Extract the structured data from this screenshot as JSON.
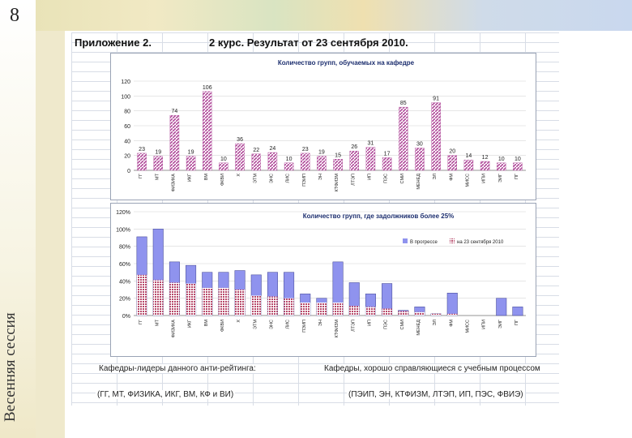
{
  "slide": {
    "number": "8",
    "vertical_title": "Весенняя сессия",
    "heading_left": "Приложение 2.",
    "heading_right": "2 курс.  Результат от 23 сентября 2010."
  },
  "colors": {
    "chart1_bar": "#b04a9a",
    "chart2_bar": "#8f93ee",
    "chart2_overlay": "#b7496a"
  },
  "chart_data": [
    {
      "type": "bar",
      "title": "Количество групп, обучаемых на кафедре",
      "categories": [
        "ГГ",
        "МТ",
        "ФИЗИКА",
        "ИКГ",
        "ВМ",
        "ФКВИ",
        "Х",
        "ЭТМ",
        "ЭНС",
        "ЛИС",
        "ПЭИП",
        "ЭН",
        "КТФИЗМ",
        "ЛТЭП",
        "ИП",
        "ПЭС",
        "СМИ",
        "МЕНЕД",
        "ЭЛ",
        "ФМ",
        "МИСС",
        "ИПИ",
        "ЭИГ",
        "ПГ"
      ],
      "values": [
        23,
        19,
        74,
        19,
        106,
        10,
        36,
        22,
        24,
        10,
        23,
        19,
        15,
        26,
        31,
        17,
        85,
        30,
        91,
        20,
        14,
        12,
        10,
        10
      ],
      "value_labels": [
        "23",
        "19",
        "74",
        "19",
        "106",
        "10",
        "36",
        "22",
        "24",
        "10",
        "23",
        "19",
        "15",
        "26",
        "31",
        "17",
        "85",
        "30",
        "91",
        "20",
        "14",
        "12",
        "10",
        "10"
      ],
      "ylim": [
        0,
        120
      ],
      "yticks": [
        "0",
        "20",
        "40",
        "60",
        "80",
        "100",
        "120"
      ],
      "xlabel": "",
      "ylabel": ""
    },
    {
      "type": "bar",
      "title": "Количество групп, где задолжников более 25%",
      "categories": [
        "ГГ",
        "МТ",
        "ФИЗИКА",
        "ИКГ",
        "ВМ",
        "ФКВИ",
        "Х",
        "ЭТМ",
        "ЭНС",
        "ЛИС",
        "ПЭИП",
        "ЭН",
        "КТФИЗМ",
        "ЛТЭП",
        "ИП",
        "ПЭС",
        "СМИ",
        "МЕНЕД",
        "ЭЛ",
        "ФМ",
        "МИСС",
        "ИПИ",
        "ЭИГ",
        "ПГ"
      ],
      "series": [
        {
          "name": "В прогрессе",
          "values": [
            0.91,
            1.0,
            0.62,
            0.58,
            0.5,
            0.5,
            0.52,
            0.47,
            0.5,
            0.5,
            0.25,
            0.2,
            0.62,
            0.38,
            0.25,
            0.37,
            0.06,
            0.1,
            0.02,
            0.26,
            0.0,
            0.0,
            0.2,
            0.1
          ]
        },
        {
          "name": "на 23 сентября 2010",
          "values": [
            0.47,
            0.41,
            0.38,
            0.37,
            0.32,
            0.32,
            0.3,
            0.23,
            0.22,
            0.2,
            0.15,
            0.15,
            0.15,
            0.11,
            0.1,
            0.08,
            0.05,
            0.04,
            0.02,
            0.02,
            0.0,
            0.0,
            0.0,
            0.0
          ]
        }
      ],
      "ylim": [
        0,
        1.2
      ],
      "yticks": [
        "0%",
        "20%",
        "40%",
        "60%",
        "80%",
        "100%",
        "120%"
      ]
    }
  ],
  "notes": {
    "leaders_label": "Кафедры-лидеры данного анти-рейтинга:",
    "leaders_list": "(ГГ, МТ, ФИЗИКА, ИКГ, ВМ, КФ и ВИ)",
    "good_label": "Кафедры, хорошо справляющиеся с учебным процессом",
    "good_list": "(ПЭИП, ЭН, КТФИЗМ, ЛТЭП, ИП, ПЭС, ФВИЭ)"
  }
}
